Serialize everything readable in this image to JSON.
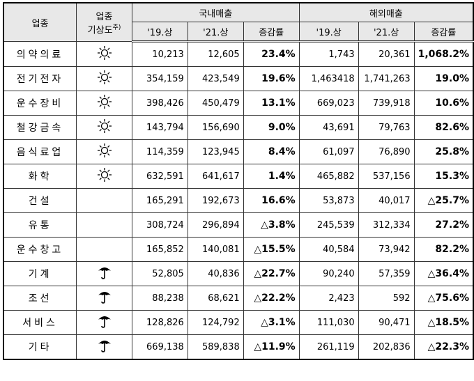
{
  "header": {
    "industry": "업종",
    "weather_line1": "업종",
    "weather_line2": "기상도",
    "weather_note": "주)",
    "domestic": "국내매출",
    "overseas": "해외매출",
    "sub": [
      "'19.상",
      "'21.상",
      "증감률",
      "'19.상",
      "'21.상",
      "증감률"
    ]
  },
  "table": {
    "rows": [
      [
        "의약의료",
        "10,213",
        "12,605",
        "23.4%",
        "1,743",
        "20,361",
        "1,068.2%"
      ],
      [
        "전기전자",
        "354,159",
        "423,549",
        "19.6%",
        "1,463418",
        "1,741,263",
        "19.0%"
      ],
      [
        "운수장비",
        "398,426",
        "450,479",
        "13.1%",
        "669,023",
        "739,918",
        "10.6%"
      ],
      [
        "철강금속",
        "143,794",
        "156,690",
        "9.0%",
        "43,691",
        "79,763",
        "82.6%"
      ],
      [
        "음식료업",
        "114,359",
        "123,945",
        "8.4%",
        "61,097",
        "76,890",
        "25.8%"
      ],
      [
        "화학",
        "632,591",
        "641,617",
        "1.4%",
        "465,882",
        "537,156",
        "15.3%"
      ],
      [
        "건설",
        "165,291",
        "192,673",
        "16.6%",
        "53,873",
        "40,017",
        "△25.7%"
      ],
      [
        "유통",
        "308,724",
        "296,894",
        "△3.8%",
        "245,539",
        "312,334",
        "27.2%"
      ],
      [
        "운수창고",
        "165,852",
        "140,081",
        "△15.5%",
        "40,584",
        "73,942",
        "82.2%"
      ],
      [
        "기계",
        "52,805",
        "40,836",
        "△22.7%",
        "90,240",
        "57,359",
        "△36.4%"
      ],
      [
        "조선",
        "88,238",
        "68,621",
        "△22.2%",
        "2,423",
        "592",
        "△75.6%"
      ],
      [
        "서비스",
        "128,826",
        "124,792",
        "△3.1%",
        "111,030",
        "90,471",
        "△18.5%"
      ],
      [
        "기타",
        "669,138",
        "589,838",
        "△11.9%",
        "261,119",
        "202,836",
        "△22.3%"
      ]
    ]
  }
}
